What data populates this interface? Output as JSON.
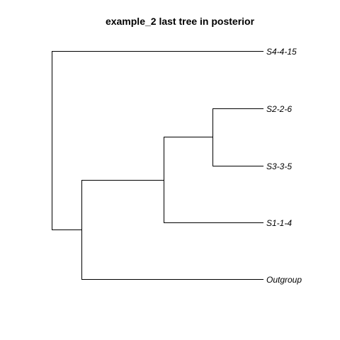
{
  "figure": {
    "title": "example_2 last tree in posterior"
  },
  "tree": {
    "tips": [
      {
        "id": "t1",
        "label": "S4-4-15"
      },
      {
        "id": "t2",
        "label": "S2-2-6"
      },
      {
        "id": "t3",
        "label": "S3-3-5"
      },
      {
        "id": "t4",
        "label": "S1-1-4"
      },
      {
        "id": "t5",
        "label": "Outgroup"
      }
    ],
    "topology": "(S4-4-15,(((S2-2-6,S3-3-5),S1-1-4),Outgroup));"
  }
}
